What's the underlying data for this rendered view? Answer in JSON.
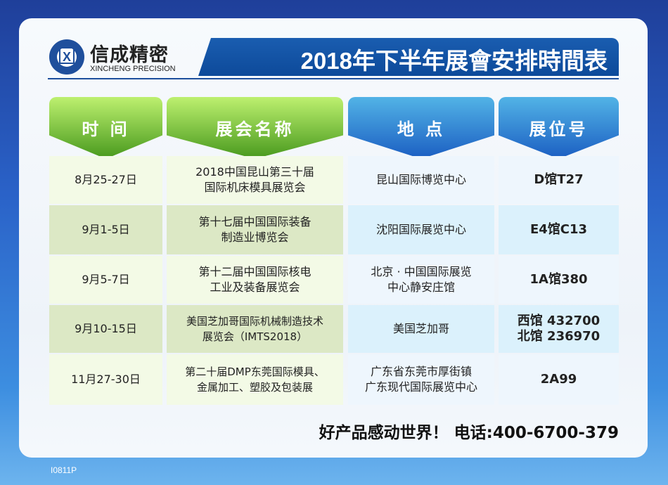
{
  "logo": {
    "name_cn": "信成精密",
    "name_en": "XINCHENG PRECISION",
    "mark": "X"
  },
  "title": "2018年下半年展會安排時間表",
  "headers": [
    "时 间",
    "展会名称",
    "地 点",
    "展位号"
  ],
  "rows": [
    {
      "date": "8月25-27日",
      "name": "2018中国昆山第三十届\n国际机床模具展览会",
      "place": "昆山国际博览中心",
      "booth": "D馆T27"
    },
    {
      "date": "9月1-5日",
      "name": "第十七届中国国际装备\n制造业博览会",
      "place": "沈阳国际展览中心",
      "booth": "E4馆C13"
    },
    {
      "date": "9月5-7日",
      "name": "第十二届中国国际核电\n工业及装备展览会",
      "place": "北京 · 中国国际展览\n中心静安庄馆",
      "booth": "1A馆380"
    },
    {
      "date": "9月10-15日",
      "name": "美国芝加哥国际机械制造技术\n展览会（IMTS2018）",
      "place": "美国芝加哥",
      "booth": "西馆 432700\n北馆 236970"
    },
    {
      "date": "11月27-30日",
      "name": "第二十届DMP东莞国际模具、\n金属加工、塑胶及包装展",
      "place": "广东省东莞市厚街镇\n广东现代国际展览中心",
      "booth": "2A99"
    }
  ],
  "slogan": "好产品感动世界！ 电话:400-6700-379",
  "code": "I0811P",
  "colors": {
    "brand_blue": "#1c4e9c",
    "header_green": "#48991d",
    "header_blue": "#1b5ec2"
  }
}
